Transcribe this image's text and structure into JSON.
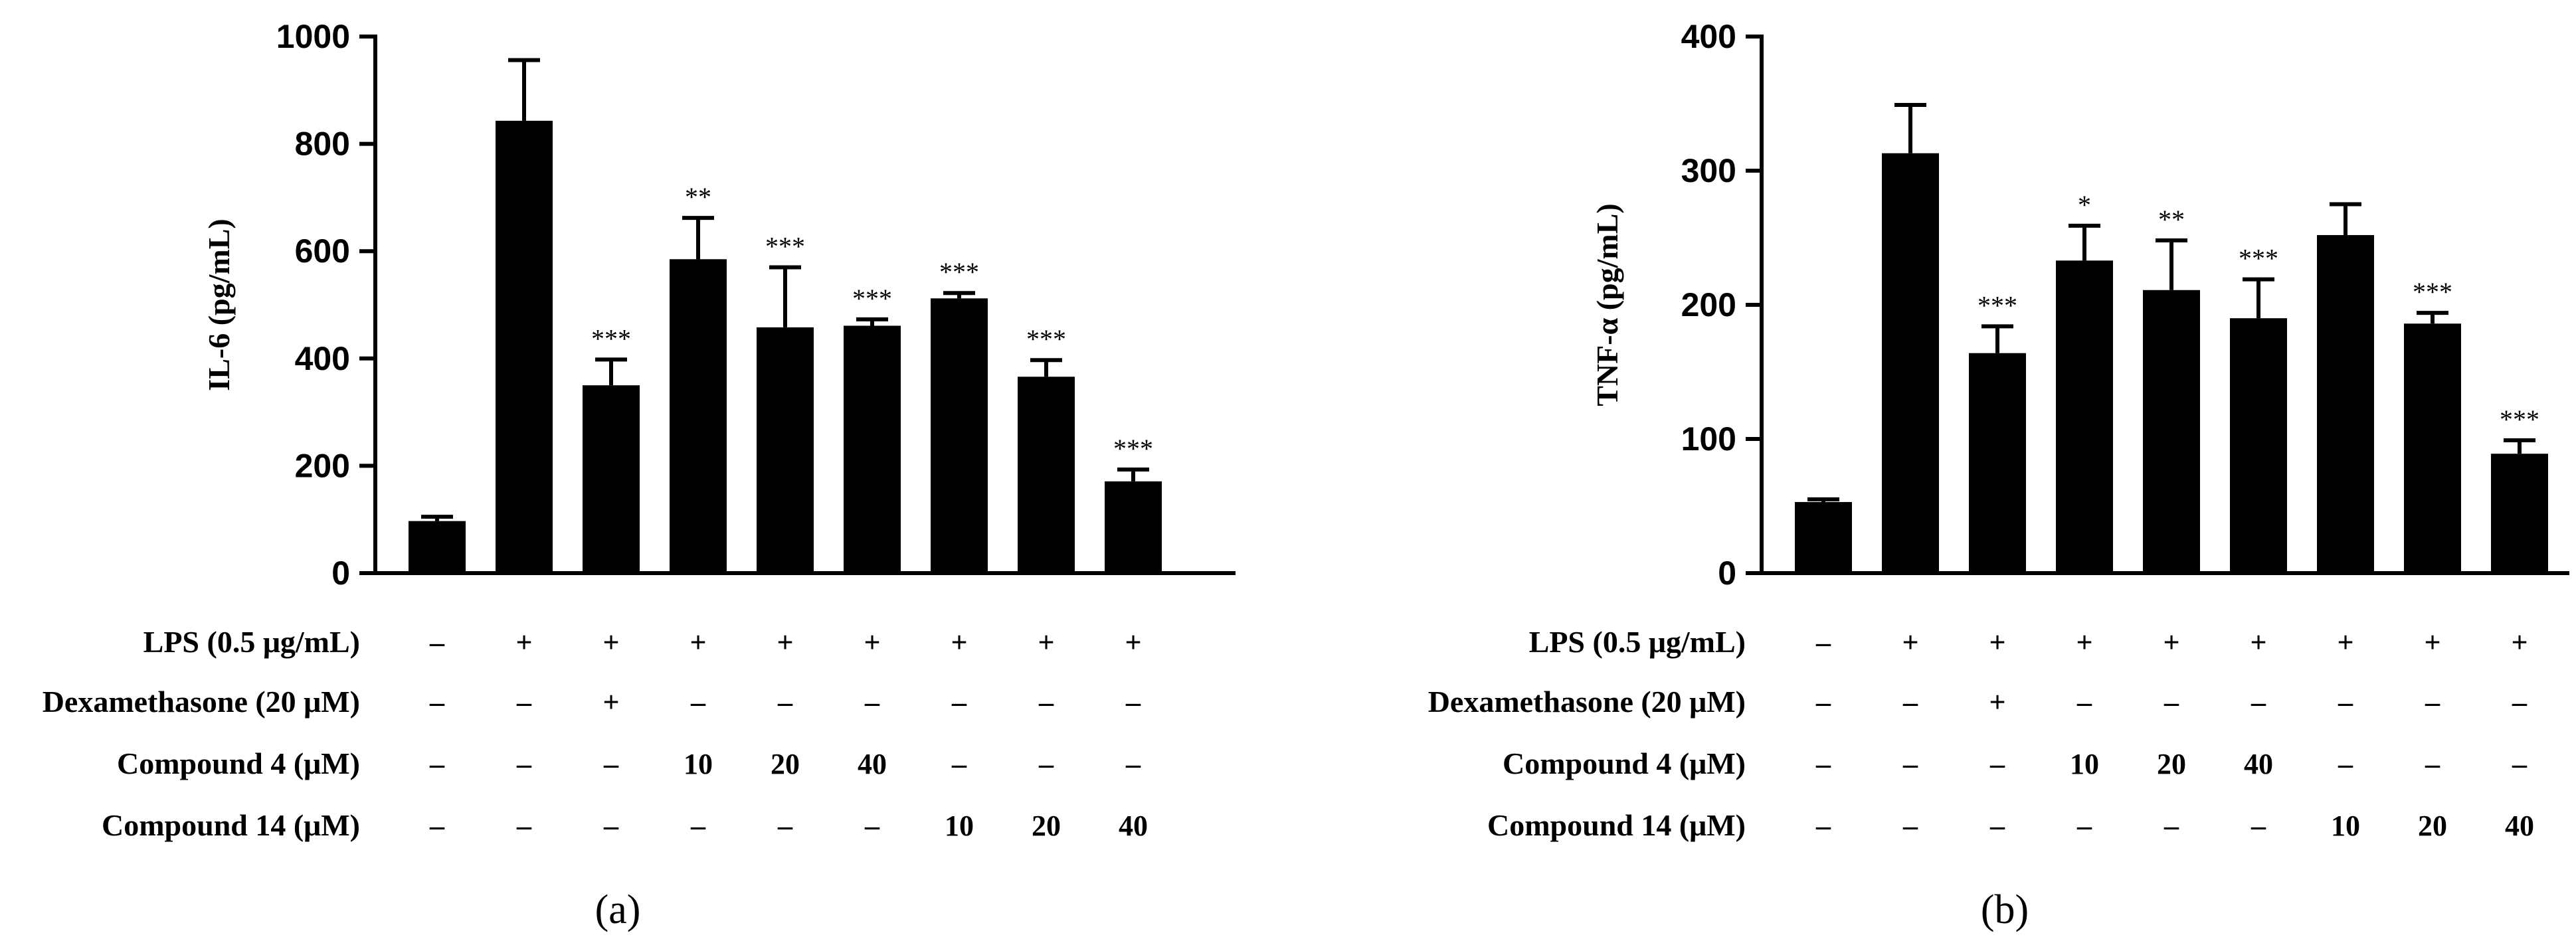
{
  "chart_data": [
    {
      "type": "bar",
      "panel_label": "(a)",
      "ylabel": "IL-6 (pg/mL)",
      "ylim": [
        0,
        1000
      ],
      "yticks": [
        0,
        200,
        400,
        600,
        800,
        1000
      ],
      "values": [
        97,
        843,
        350,
        585,
        458,
        461,
        512,
        366,
        171
      ],
      "errors": [
        8,
        113,
        48,
        77,
        112,
        12,
        10,
        31,
        22
      ],
      "significance": [
        "",
        "",
        "***",
        "**",
        "***",
        "***",
        "***",
        "***",
        "***"
      ],
      "conditions": [
        {
          "label": "LPS (0.5 μg/mL)",
          "values": [
            "–",
            "+",
            "+",
            "+",
            "+",
            "+",
            "+",
            "+",
            "+"
          ]
        },
        {
          "label": "Dexamethasone (20 μM)",
          "values": [
            "–",
            "–",
            "+",
            "–",
            "–",
            "–",
            "–",
            "–",
            "–"
          ]
        },
        {
          "label": "Compound 4 (μM)",
          "values": [
            "–",
            "–",
            "–",
            "10",
            "20",
            "40",
            "–",
            "–",
            "–"
          ]
        },
        {
          "label": "Compound 14 (μM)",
          "values": [
            "–",
            "–",
            "–",
            "–",
            "–",
            "–",
            "10",
            "20",
            "40"
          ]
        }
      ]
    },
    {
      "type": "bar",
      "panel_label": "(b)",
      "ylabel": "TNF-α (pg/mL)",
      "ylim": [
        0,
        400
      ],
      "yticks": [
        0,
        100,
        200,
        300,
        400
      ],
      "values": [
        53,
        313,
        164,
        233,
        211,
        190,
        252,
        186,
        89
      ],
      "errors": [
        2,
        36,
        20,
        26,
        37,
        29,
        23,
        8,
        10
      ],
      "significance": [
        "",
        "",
        "***",
        "*",
        "**",
        "***",
        "",
        "***",
        "***"
      ],
      "conditions": [
        {
          "label": "LPS (0.5 μg/mL)",
          "values": [
            "–",
            "+",
            "+",
            "+",
            "+",
            "+",
            "+",
            "+",
            "+"
          ]
        },
        {
          "label": "Dexamethasone (20 μM)",
          "values": [
            "–",
            "–",
            "+",
            "–",
            "–",
            "–",
            "–",
            "–",
            "–"
          ]
        },
        {
          "label": "Compound 4 (μM)",
          "values": [
            "–",
            "–",
            "–",
            "10",
            "20",
            "40",
            "–",
            "–",
            "–"
          ]
        },
        {
          "label": "Compound 14 (μM)",
          "values": [
            "–",
            "–",
            "–",
            "–",
            "–",
            "–",
            "10",
            "20",
            "40"
          ]
        }
      ]
    }
  ]
}
